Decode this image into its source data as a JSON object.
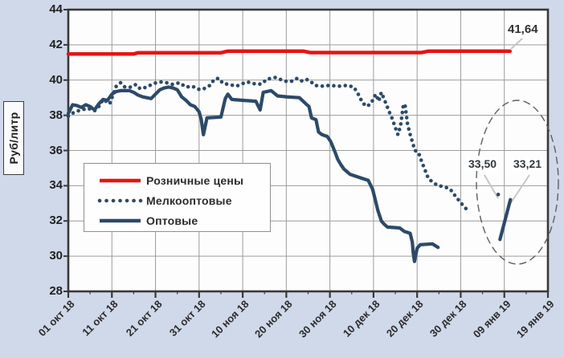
{
  "colors": {
    "background": "#d0d9e9",
    "plot_bg": "#fdfdfd",
    "frame": "#383838",
    "grid": "#9c9c9c",
    "ellipse": "#5f5f5f",
    "leader": "#c6c6c6"
  },
  "chart_data": {
    "type": "line",
    "ylabel": "Руб/литр",
    "ylim": [
      28,
      44
    ],
    "y_ticks": [
      44,
      42,
      40,
      38,
      36,
      34,
      32,
      30,
      28
    ],
    "x_ticks": [
      "01 окт 18",
      "11 окт 18",
      "21 окт 18",
      "31 окт 18",
      "10 ноя 18",
      "20 ноя 18",
      "30 ноя 18",
      "10 дек 18",
      "20 дек 18",
      "30 дек 18",
      "09 янв 19",
      "19 янв 19"
    ],
    "x_range_days": [
      0,
      110
    ],
    "grid": true,
    "legend_position": "inside-left",
    "highlight_ellipse": "last values circled",
    "series": [
      {
        "name": "Розничные цены",
        "color": "#e81212",
        "style": "solid",
        "width": 4.5,
        "end_label": "41,64",
        "points": [
          [
            0,
            41.48
          ],
          [
            15,
            41.48
          ],
          [
            16,
            41.55
          ],
          [
            35,
            41.55
          ],
          [
            36.5,
            41.64
          ],
          [
            54,
            41.64
          ],
          [
            55.5,
            41.56
          ],
          [
            81,
            41.56
          ],
          [
            82.5,
            41.64
          ],
          [
            101.3,
            41.64
          ]
        ]
      },
      {
        "name": "Мелкооптовые",
        "color": "#2c4a68",
        "style": "dotted",
        "width": 4.4,
        "end_label": "33,50",
        "points": [
          [
            0,
            37.95
          ],
          [
            1.5,
            38.2
          ],
          [
            3,
            38.3
          ],
          [
            4.5,
            38.4
          ],
          [
            6,
            38.25
          ],
          [
            7,
            38.5
          ],
          [
            8,
            38.9
          ],
          [
            9.5,
            38.65
          ],
          [
            11,
            39.65
          ],
          [
            12,
            39.85
          ],
          [
            13,
            39.6
          ],
          [
            14.5,
            39.6
          ],
          [
            15.5,
            39.75
          ],
          [
            16.5,
            39.5
          ],
          [
            18,
            39.6
          ],
          [
            19.5,
            39.8
          ],
          [
            21,
            39.9
          ],
          [
            22.5,
            39.85
          ],
          [
            24,
            39.75
          ],
          [
            25.5,
            39.85
          ],
          [
            27,
            39.6
          ],
          [
            28.5,
            39.65
          ],
          [
            29.5,
            39.5
          ],
          [
            30.5,
            39.45
          ],
          [
            31.5,
            39.55
          ],
          [
            32.5,
            39.7
          ],
          [
            33.5,
            40.05
          ],
          [
            34.5,
            40.1
          ],
          [
            35.5,
            39.8
          ],
          [
            37,
            39.75
          ],
          [
            38.5,
            39.65
          ],
          [
            40,
            39.8
          ],
          [
            41,
            39.9
          ],
          [
            42.5,
            39.8
          ],
          [
            43.5,
            39.75
          ],
          [
            44.5,
            39.8
          ],
          [
            45.5,
            40.05
          ],
          [
            46.5,
            40.1
          ],
          [
            47.5,
            40.15
          ],
          [
            48.5,
            40.05
          ],
          [
            49.5,
            39.95
          ],
          [
            50.5,
            39.9
          ],
          [
            51.5,
            39.95
          ],
          [
            52.5,
            40.1
          ],
          [
            53.5,
            39.95
          ],
          [
            54.5,
            40.05
          ],
          [
            55.5,
            39.95
          ],
          [
            56.5,
            39.7
          ],
          [
            58,
            39.65
          ],
          [
            60,
            39.7
          ],
          [
            62,
            39.65
          ],
          [
            64,
            39.7
          ],
          [
            65.5,
            39.6
          ],
          [
            66.5,
            39.2
          ],
          [
            67.5,
            38.7
          ],
          [
            68.5,
            38.5
          ],
          [
            69.5,
            38.7
          ],
          [
            70.5,
            39.2
          ],
          [
            71.2,
            38.8
          ],
          [
            71.8,
            39.3
          ],
          [
            72.8,
            38.7
          ],
          [
            73.6,
            38.2
          ],
          [
            74.3,
            37.8
          ],
          [
            75,
            37.3
          ],
          [
            75.6,
            36.9
          ],
          [
            76.2,
            37.4
          ],
          [
            76.8,
            38.5
          ],
          [
            77.2,
            38.65
          ],
          [
            77.8,
            37.5
          ],
          [
            78.3,
            37.0
          ],
          [
            78.9,
            36.5
          ],
          [
            79.5,
            36.0
          ],
          [
            80.3,
            35.9
          ],
          [
            81,
            35.4
          ],
          [
            81.8,
            34.9
          ],
          [
            82.6,
            34.4
          ],
          [
            83.6,
            34.2
          ],
          [
            84.8,
            34.0
          ],
          [
            86.2,
            33.95
          ],
          [
            87.6,
            33.8
          ],
          [
            88.8,
            33.4
          ],
          [
            89.8,
            33.1
          ],
          [
            90.8,
            32.8
          ],
          [
            92,
            32.5
          ],
          null,
          [
            98.6,
            33.5
          ]
        ]
      },
      {
        "name": "Оптовые",
        "color": "#2c4a68",
        "style": "solid",
        "width": 4.2,
        "end_label": "33,21",
        "points": [
          [
            0,
            38.1
          ],
          [
            1,
            38.6
          ],
          [
            2,
            38.55
          ],
          [
            3,
            38.45
          ],
          [
            4,
            38.6
          ],
          [
            5,
            38.5
          ],
          [
            6,
            38.3
          ],
          [
            7,
            38.65
          ],
          [
            8,
            38.9
          ],
          [
            9,
            38.85
          ],
          [
            10,
            39.2
          ],
          [
            11,
            39.35
          ],
          [
            12,
            39.4
          ],
          [
            14,
            39.4
          ],
          [
            15,
            39.3
          ],
          [
            16,
            39.15
          ],
          [
            17,
            39.05
          ],
          [
            19,
            38.95
          ],
          [
            20,
            39.2
          ],
          [
            21,
            39.45
          ],
          [
            22,
            39.55
          ],
          [
            23,
            39.6
          ],
          [
            24,
            39.55
          ],
          [
            25,
            39.45
          ],
          [
            26,
            39.05
          ],
          [
            27,
            38.85
          ],
          [
            28,
            38.6
          ],
          [
            29,
            38.5
          ],
          [
            30,
            38.2
          ],
          [
            30.5,
            37.75
          ],
          [
            31,
            36.9
          ],
          [
            31.8,
            37.85
          ],
          [
            35,
            37.9
          ],
          [
            36,
            38.95
          ],
          [
            36.6,
            39.2
          ],
          [
            37.5,
            38.9
          ],
          [
            40,
            38.85
          ],
          [
            43,
            38.8
          ],
          [
            44,
            38.3
          ],
          [
            44.7,
            39.3
          ],
          [
            46.5,
            39.4
          ],
          [
            48,
            39.1
          ],
          [
            50,
            39.05
          ],
          [
            53,
            39.0
          ],
          [
            54.5,
            38.65
          ],
          [
            55.2,
            38.5
          ],
          [
            55.8,
            37.85
          ],
          [
            56.8,
            37.75
          ],
          [
            57.4,
            37.05
          ],
          [
            58.2,
            36.9
          ],
          [
            59.4,
            36.8
          ],
          [
            60.2,
            36.5
          ],
          [
            60.7,
            36.2
          ],
          [
            61.2,
            35.9
          ],
          [
            61.8,
            35.5
          ],
          [
            62.5,
            35.2
          ],
          [
            63.2,
            34.95
          ],
          [
            64.6,
            34.65
          ],
          [
            67,
            34.45
          ],
          [
            68.8,
            34.3
          ],
          [
            69.8,
            33.8
          ],
          [
            70.4,
            33.2
          ],
          [
            71,
            32.6
          ],
          [
            71.8,
            32.0
          ],
          [
            72.5,
            31.8
          ],
          [
            73.2,
            31.65
          ],
          [
            76,
            31.6
          ],
          [
            77.1,
            31.4
          ],
          [
            78.4,
            31.3
          ],
          [
            78.9,
            30.8
          ],
          [
            79.1,
            30.2
          ],
          [
            79.4,
            29.7
          ],
          [
            80,
            30.45
          ],
          [
            80.7,
            30.65
          ],
          [
            83.5,
            30.7
          ],
          [
            84.8,
            30.5
          ],
          null,
          [
            99,
            30.95
          ],
          [
            101.4,
            33.21
          ]
        ]
      }
    ]
  }
}
